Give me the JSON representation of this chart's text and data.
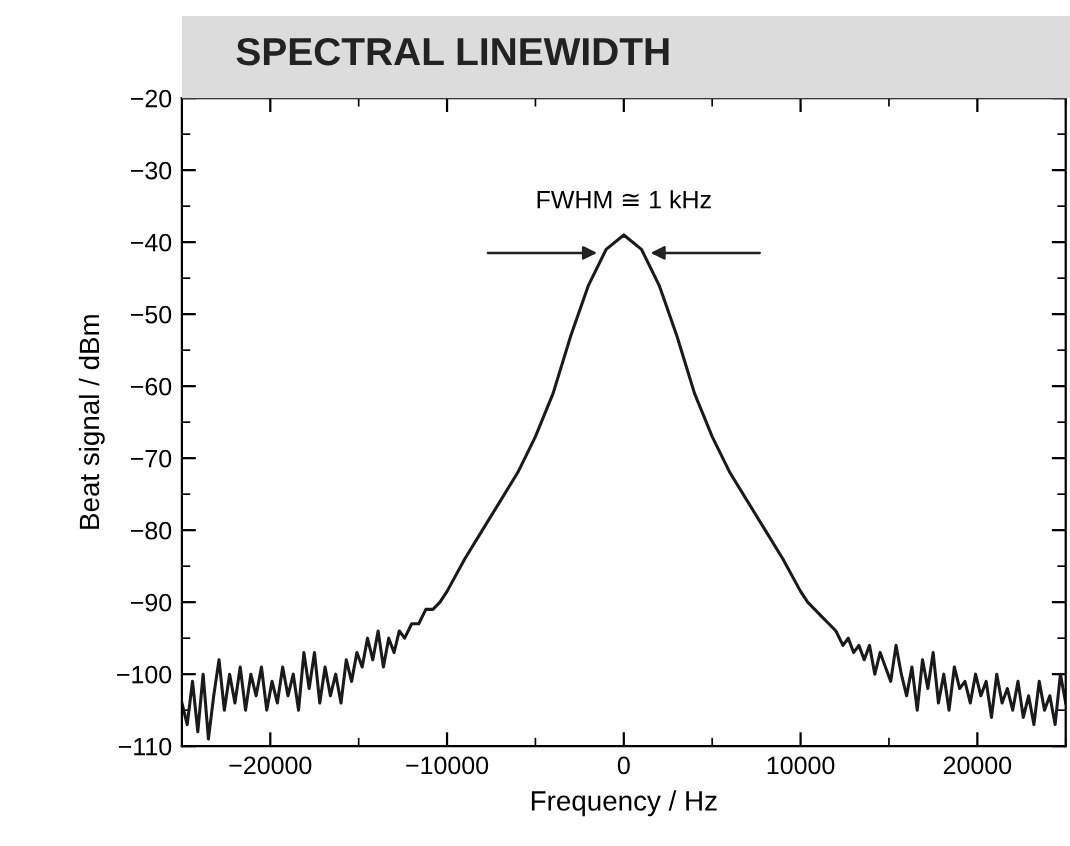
{
  "chart_data": {
    "type": "line",
    "title": "SPECTRAL LINEWIDTH",
    "xlabel": "Frequency / Hz",
    "ylabel": "Beat signal / dBm",
    "annotations": [
      "FWHM ≅ 1 kHz"
    ],
    "xlim": [
      -25000,
      25000
    ],
    "xticks": [
      -20000,
      -10000,
      0,
      10000,
      20000
    ],
    "ylim": [
      -110,
      -20
    ],
    "yticks": [
      -110,
      -100,
      -90,
      -80,
      -70,
      -60,
      -50,
      -40,
      -30,
      -20
    ],
    "grid": false,
    "marker": "none",
    "line_style": "solid",
    "series": [
      {
        "color": "#1a1a1a",
        "x": [
          -25000,
          -24700,
          -24400,
          -24100,
          -23800,
          -23500,
          -23200,
          -22900,
          -22600,
          -22300,
          -22000,
          -21700,
          -21400,
          -21100,
          -20800,
          -20500,
          -20200,
          -19900,
          -19600,
          -19300,
          -19000,
          -18700,
          -18400,
          -18100,
          -17800,
          -17500,
          -17200,
          -16900,
          -16600,
          -16300,
          -16000,
          -15700,
          -15400,
          -15100,
          -14800,
          -14500,
          -14200,
          -13900,
          -13600,
          -13300,
          -13000,
          -12700,
          -12400,
          -12000,
          -11600,
          -11200,
          -10800,
          -10400,
          -10000,
          -9000,
          -8000,
          -7000,
          -6000,
          -5000,
          -4000,
          -3000,
          -2000,
          -1000,
          0,
          1000,
          2000,
          3000,
          4000,
          5000,
          6000,
          7000,
          8000,
          9000,
          10000,
          10400,
          10800,
          11200,
          11600,
          12000,
          12400,
          12700,
          13000,
          13300,
          13600,
          13900,
          14200,
          14500,
          14800,
          15100,
          15400,
          15700,
          16000,
          16300,
          16600,
          16900,
          17200,
          17500,
          17800,
          18100,
          18400,
          18700,
          19000,
          19300,
          19600,
          19900,
          20200,
          20500,
          20800,
          21100,
          21400,
          21700,
          22000,
          22300,
          22600,
          22900,
          23200,
          23500,
          23800,
          24100,
          24400,
          24700,
          25000
        ],
        "values": [
          -104,
          -107,
          -101,
          -108,
          -100,
          -109,
          -103,
          -98,
          -105,
          -100,
          -104,
          -99,
          -105,
          -100,
          -103,
          -99,
          -105,
          -101,
          -104,
          -99,
          -103,
          -100,
          -105,
          -97,
          -102,
          -97,
          -104,
          -99,
          -103,
          -100,
          -104,
          -98,
          -101,
          -97,
          -99,
          -95,
          -98,
          -94,
          -99,
          -95,
          -97,
          -94,
          -95,
          -93,
          -93,
          -91,
          -91,
          -90,
          -88.5,
          -84,
          -80,
          -76,
          -72,
          -67,
          -61,
          -53,
          -46,
          -41,
          -39,
          -41,
          -46,
          -53,
          -61,
          -67,
          -72,
          -76,
          -80,
          -84,
          -88.5,
          -90,
          -91,
          -92,
          -93,
          -94,
          -96,
          -95,
          -97,
          -96,
          -98,
          -96,
          -100,
          -97,
          -99,
          -101,
          -96,
          -100,
          -103,
          -99,
          -105,
          -98,
          -102,
          -97,
          -104,
          -100,
          -105,
          -99,
          -102,
          -101,
          -104,
          -100,
          -103,
          -101,
          -106,
          -100,
          -104,
          -102,
          -105,
          -101,
          -106,
          -103,
          -107,
          -101,
          -105,
          -103,
          -107,
          -100,
          -104
        ]
      }
    ]
  }
}
